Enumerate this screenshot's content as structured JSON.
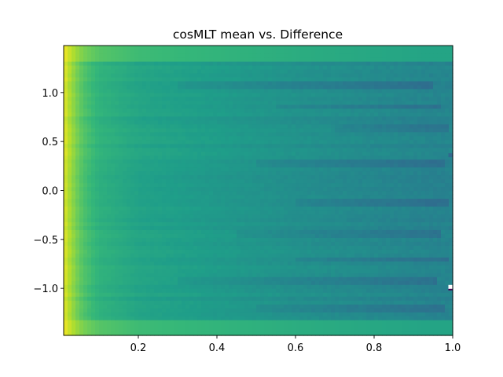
{
  "chart_data": {
    "type": "heatmap",
    "title": "cosMLT mean vs. Difference",
    "xlabel": "",
    "ylabel": "",
    "xlim": [
      0.01,
      1.0
    ],
    "ylim": [
      -1.48,
      1.48
    ],
    "x_ticks": [
      {
        "value": 0.2,
        "label": "0.2"
      },
      {
        "value": 0.4,
        "label": "0.4"
      },
      {
        "value": 0.6,
        "label": "0.6"
      },
      {
        "value": 0.8,
        "label": "0.8"
      },
      {
        "value": 1.0,
        "label": "1.0"
      }
    ],
    "y_ticks": [
      {
        "value": 1.0,
        "label": "1.0"
      },
      {
        "value": 0.5,
        "label": "0.5"
      },
      {
        "value": 0.0,
        "label": "0.0"
      },
      {
        "value": -0.5,
        "label": "−0.5"
      },
      {
        "value": -1.0,
        "label": "−1.0"
      }
    ],
    "colormap": "viridis",
    "grid": false,
    "colorbar": false,
    "value_range": [
      0,
      1
    ],
    "x_profile": [
      {
        "x": 0.01,
        "v": 0.96
      },
      {
        "x": 0.02,
        "v": 0.9
      },
      {
        "x": 0.04,
        "v": 0.8
      },
      {
        "x": 0.06,
        "v": 0.72
      },
      {
        "x": 0.1,
        "v": 0.64
      },
      {
        "x": 0.2,
        "v": 0.58
      },
      {
        "x": 0.4,
        "v": 0.54
      },
      {
        "x": 0.6,
        "v": 0.5
      },
      {
        "x": 0.8,
        "v": 0.47
      },
      {
        "x": 0.95,
        "v": 0.45
      },
      {
        "x": 1.0,
        "v": 0.45
      }
    ],
    "edge_rows": [
      {
        "y_from": 1.33,
        "y_to": 1.48,
        "v": 0.62
      },
      {
        "y_from": -1.48,
        "y_to": -1.33,
        "v": 0.62
      }
    ],
    "anomalies": [
      {
        "x": 0.995,
        "y": -1.0,
        "v": 0.0,
        "color": "#440154"
      },
      {
        "x": 0.995,
        "y": -0.985,
        "v": 1.0,
        "color": "#ffffff"
      },
      {
        "x": 0.995,
        "y": 0.36,
        "v": 0.25,
        "color": "#31688e"
      }
    ],
    "dark_streaks": [
      {
        "y": 1.08,
        "x_from": 0.3,
        "x_to": 0.95
      },
      {
        "y": 0.86,
        "x_from": 0.55,
        "x_to": 0.97
      },
      {
        "y": 0.65,
        "x_from": 0.7,
        "x_to": 0.99
      },
      {
        "y": 0.28,
        "x_from": 0.5,
        "x_to": 0.98
      },
      {
        "y": -0.12,
        "x_from": 0.6,
        "x_to": 0.99
      },
      {
        "y": -0.44,
        "x_from": 0.45,
        "x_to": 0.97
      },
      {
        "y": -0.7,
        "x_from": 0.6,
        "x_to": 0.99
      },
      {
        "y": -0.92,
        "x_from": 0.3,
        "x_to": 0.96
      },
      {
        "y": -1.2,
        "x_from": 0.5,
        "x_to": 0.98
      }
    ]
  }
}
